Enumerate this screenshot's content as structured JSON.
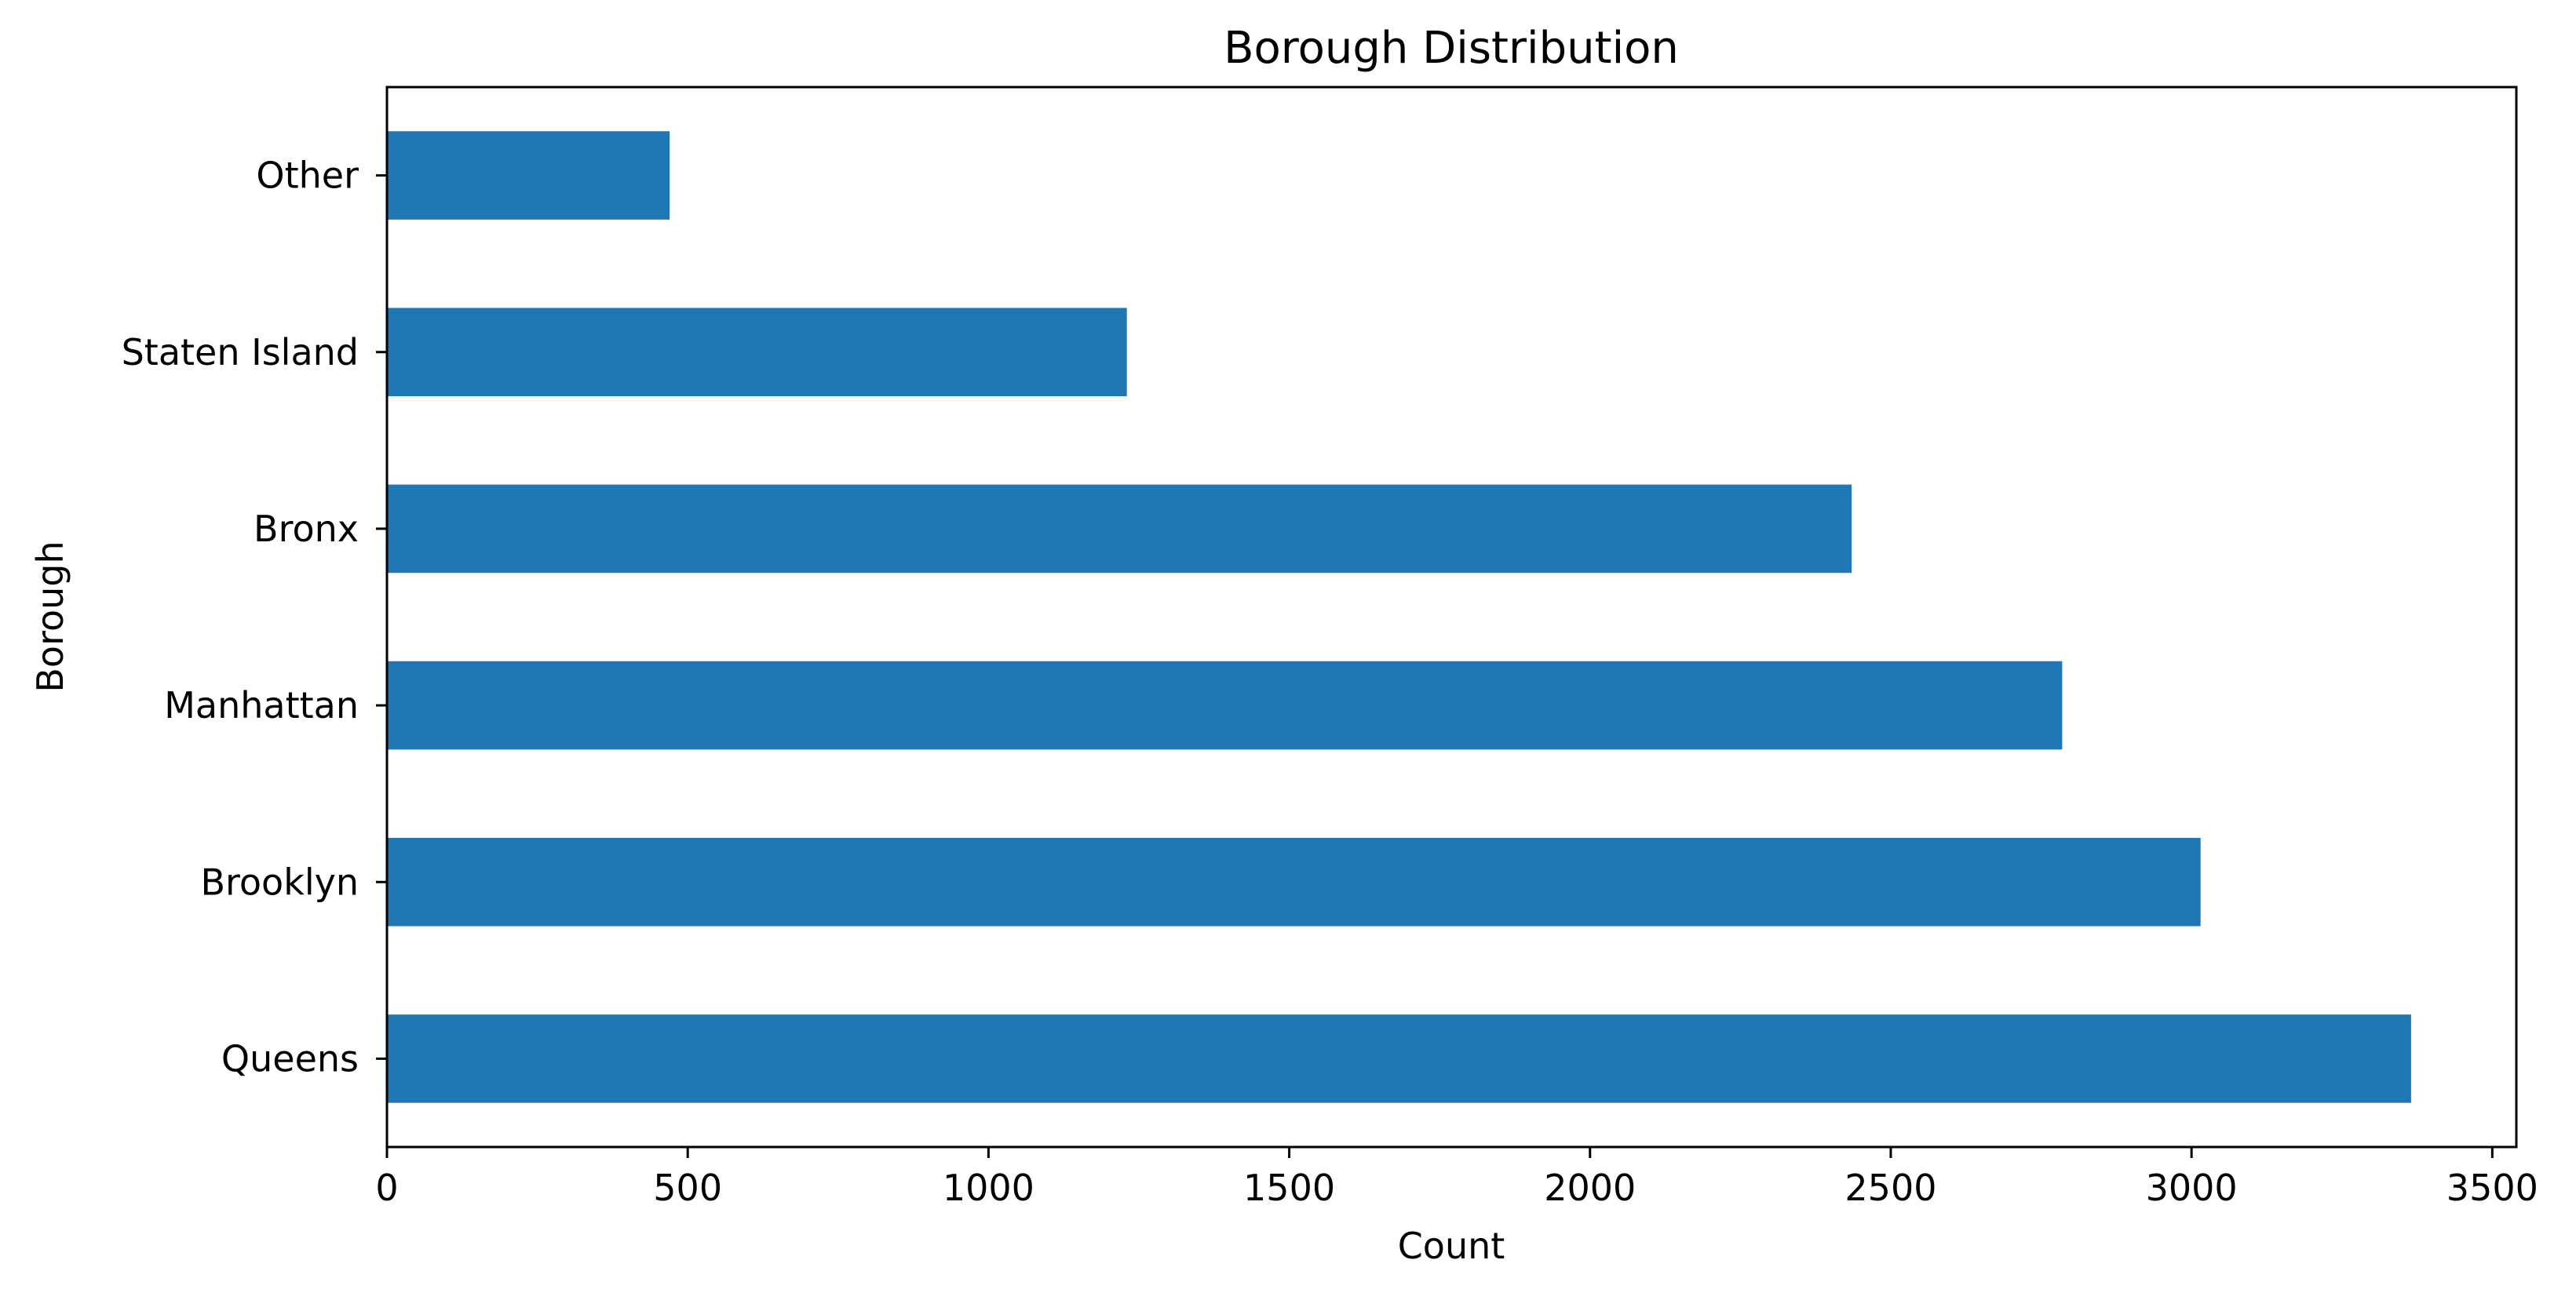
{
  "chart_data": {
    "type": "bar",
    "orientation": "horizontal",
    "title": "Borough Distribution",
    "xlabel": "Count",
    "ylabel": "Borough",
    "categories": [
      "Queens",
      "Brooklyn",
      "Manhattan",
      "Bronx",
      "Staten Island",
      "Other"
    ],
    "values": [
      3365,
      3015,
      2785,
      2435,
      1230,
      470
    ],
    "xlim": [
      0,
      3540
    ],
    "xticks": [
      0,
      500,
      1000,
      1500,
      2000,
      2500,
      3000,
      3500
    ],
    "grid": false,
    "legend": "none",
    "bar_color": "#1f77b4"
  }
}
